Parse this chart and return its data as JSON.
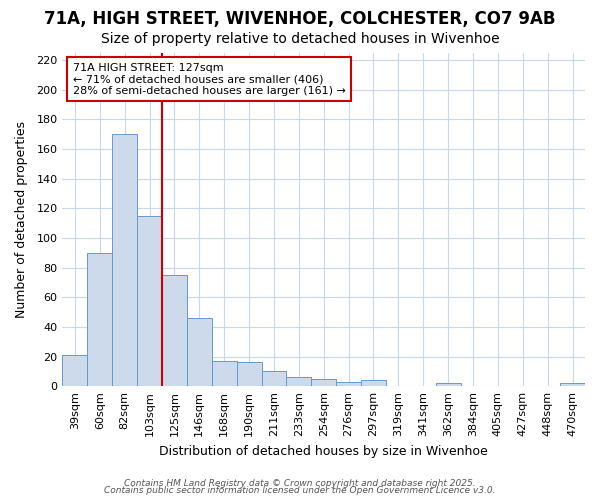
{
  "title_line1": "71A, HIGH STREET, WIVENHOE, COLCHESTER, CO7 9AB",
  "title_line2": "Size of property relative to detached houses in Wivenhoe",
  "xlabel": "Distribution of detached houses by size in Wivenhoe",
  "ylabel": "Number of detached properties",
  "categories": [
    "39sqm",
    "60sqm",
    "82sqm",
    "103sqm",
    "125sqm",
    "146sqm",
    "168sqm",
    "190sqm",
    "211sqm",
    "233sqm",
    "254sqm",
    "276sqm",
    "297sqm",
    "319sqm",
    "341sqm",
    "362sqm",
    "384sqm",
    "405sqm",
    "427sqm",
    "448sqm",
    "470sqm"
  ],
  "values": [
    21,
    90,
    170,
    115,
    75,
    46,
    17,
    16,
    10,
    6,
    5,
    3,
    4,
    0,
    0,
    2,
    0,
    0,
    0,
    0,
    2
  ],
  "bar_color": "#cddaeb",
  "bar_edge_color": "#6699cc",
  "vline_x": 4,
  "vline_color": "#cc0000",
  "annotation_text": "71A HIGH STREET: 127sqm\n← 71% of detached houses are smaller (406)\n28% of semi-detached houses are larger (161) →",
  "annotation_box_color": "white",
  "annotation_box_edge_color": "#cc0000",
  "ylim": [
    0,
    225
  ],
  "yticks": [
    0,
    20,
    40,
    60,
    80,
    100,
    120,
    140,
    160,
    180,
    200,
    220
  ],
  "background_color": "#ffffff",
  "plot_bg_color": "#ffffff",
  "grid_color": "#c8d8e8",
  "footer_line1": "Contains HM Land Registry data © Crown copyright and database right 2025.",
  "footer_line2": "Contains public sector information licensed under the Open Government Licence v3.0.",
  "title_fontsize": 12,
  "subtitle_fontsize": 10,
  "tick_fontsize": 8,
  "label_fontsize": 9,
  "annotation_fontsize": 8,
  "footer_fontsize": 6.5
}
